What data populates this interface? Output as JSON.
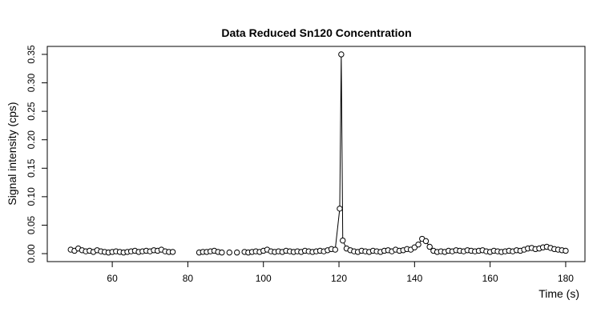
{
  "chart_data": {
    "type": "line",
    "title": "Data Reduced Sn120 Concentration",
    "x_label": "Time (s)",
    "y_label": "Signal intensity (cps)",
    "x": [
      49,
      50,
      51,
      52,
      53,
      54,
      55,
      56,
      57,
      58,
      59,
      60,
      61,
      62,
      63,
      64,
      65,
      66,
      67,
      68,
      69,
      70,
      71,
      72,
      73,
      74,
      75,
      76,
      77,
      78,
      79,
      80,
      81,
      82,
      83,
      84,
      85,
      86,
      87,
      88,
      89,
      90,
      91,
      92,
      93,
      94,
      95,
      96,
      97,
      98,
      99,
      100,
      101,
      102,
      103,
      104,
      105,
      106,
      107,
      108,
      109,
      110,
      111,
      112,
      113,
      114,
      115,
      116,
      117,
      118,
      119,
      120.2,
      120.6,
      121,
      122,
      123,
      124,
      125,
      126,
      127,
      128,
      129,
      130,
      131,
      132,
      133,
      134,
      135,
      136,
      137,
      138,
      139,
      140,
      141,
      142,
      143,
      144,
      145,
      146,
      147,
      148,
      149,
      150,
      151,
      152,
      153,
      154,
      155,
      156,
      157,
      158,
      159,
      160,
      161,
      162,
      163,
      164,
      165,
      166,
      167,
      168,
      169,
      170,
      171,
      172,
      173,
      174,
      175,
      176,
      177,
      178,
      179,
      180
    ],
    "series": [
      {
        "name": "Sn120",
        "color": "#000000",
        "values": [
          0.007,
          0.005,
          0.009,
          0.006,
          0.004,
          0.005,
          0.003,
          0.006,
          0.004,
          0.003,
          0.002,
          0.003,
          0.004,
          0.003,
          0.002,
          0.003,
          0.004,
          0.005,
          0.003,
          0.004,
          0.005,
          0.004,
          0.006,
          0.005,
          0.007,
          0.004,
          0.003,
          0.003,
          null,
          null,
          null,
          null,
          null,
          null,
          0.002,
          0.003,
          0.003,
          0.004,
          0.005,
          0.003,
          0.002,
          null,
          0.002,
          null,
          0.002,
          null,
          0.003,
          0.002,
          0.003,
          0.004,
          0.003,
          0.005,
          0.007,
          0.004,
          0.003,
          0.004,
          0.003,
          0.005,
          0.004,
          0.003,
          0.004,
          0.003,
          0.005,
          0.004,
          0.003,
          0.004,
          0.005,
          0.004,
          0.006,
          0.008,
          0.007,
          0.079,
          0.35,
          0.023,
          0.009,
          0.006,
          0.004,
          0.003,
          0.005,
          0.004,
          0.003,
          0.005,
          0.004,
          0.003,
          0.005,
          0.006,
          0.004,
          0.007,
          0.005,
          0.006,
          0.008,
          0.007,
          0.011,
          0.016,
          0.026,
          0.022,
          0.012,
          0.005,
          0.003,
          0.004,
          0.003,
          0.005,
          0.004,
          0.006,
          0.005,
          0.004,
          0.006,
          0.005,
          0.004,
          0.005,
          0.006,
          0.004,
          0.003,
          0.005,
          0.004,
          0.003,
          0.004,
          0.005,
          0.004,
          0.006,
          0.005,
          0.007,
          0.009,
          0.01,
          0.008,
          0.009,
          0.011,
          0.012,
          0.01,
          0.008,
          0.007,
          0.006,
          0.005
        ]
      }
    ],
    "xlim": [
      42.8,
      185.1
    ],
    "ylim": [
      -0.014,
      0.364
    ],
    "xticks": [
      60,
      80,
      100,
      120,
      140,
      160,
      180
    ],
    "yticks": [
      {
        "value": 0,
        "label": "0.00"
      },
      {
        "value": 0.05,
        "label": "0.05"
      },
      {
        "value": 0.1,
        "label": "0.10"
      },
      {
        "value": 0.15,
        "label": "0.15"
      },
      {
        "value": 0.2,
        "label": "0.20"
      },
      {
        "value": 0.25,
        "label": "0.25"
      },
      {
        "value": 0.3,
        "label": "0.30"
      },
      {
        "value": 0.35,
        "label": "0.35"
      }
    ]
  }
}
